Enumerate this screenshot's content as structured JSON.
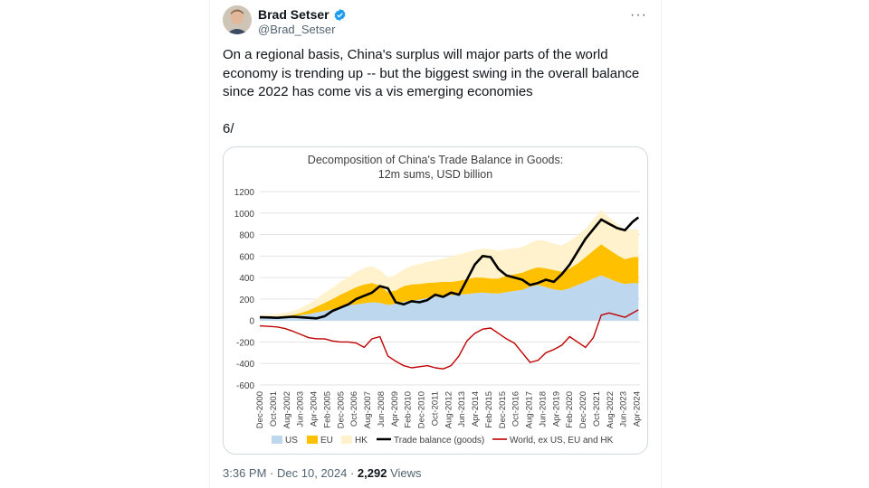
{
  "author": {
    "name": "Brad Setser",
    "handle": "@Brad_Setser",
    "verified_color": "#1d9bf0"
  },
  "tweet": {
    "lines": [
      "On a regional basis, China's surplus will major parts of the world",
      "economy is trending up -- but the biggest swing in the overall balance",
      "since 2022 has come vis a vis emerging economies"
    ],
    "counter": "6/",
    "time": "3:36 PM",
    "date": "Dec 10, 2024",
    "views_count": "2,292",
    "views_label": "Views",
    "more_label": "···"
  },
  "chart_data": {
    "type": "area",
    "title": "Decomposition of China's Trade Balance in Goods:",
    "subtitle": "12m sums, USD billion",
    "ylim": [
      -600,
      1200
    ],
    "yticks": [
      "1200",
      "1000",
      "800",
      "600",
      "400",
      "200",
      "0",
      "-200",
      "-400",
      "-600"
    ],
    "categories": [
      "Dec-2000",
      "Oct-2001",
      "Aug-2002",
      "Jun-2003",
      "Apr-2004",
      "Feb-2005",
      "Dec-2005",
      "Oct-2006",
      "Aug-2007",
      "Jun-2008",
      "Apr-2009",
      "Feb-2010",
      "Dec-2010",
      "Oct-2011",
      "Aug-2012",
      "Jun-2013",
      "Apr-2014",
      "Feb-2015",
      "Dec-2015",
      "Oct-2016",
      "Aug-2017",
      "Jun-2018",
      "Apr-2019",
      "Feb-2020",
      "Dec-2020",
      "Oct-2021",
      "Aug-2022",
      "Jun-2023",
      "Apr-2024"
    ],
    "x": [
      2000.9,
      2001.5,
      2002,
      2002.5,
      2003,
      2003.5,
      2004,
      2004.5,
      2005,
      2005.5,
      2006,
      2006.5,
      2007,
      2007.5,
      2008,
      2008.5,
      2009,
      2009.5,
      2010,
      2010.5,
      2011,
      2011.5,
      2012,
      2012.5,
      2013,
      2013.5,
      2014,
      2014.5,
      2015,
      2015.5,
      2016,
      2016.5,
      2017,
      2017.5,
      2018,
      2018.5,
      2019,
      2019.5,
      2020,
      2020.5,
      2021,
      2021.5,
      2022,
      2022.5,
      2023,
      2023.5,
      2024,
      2024.5,
      2024.85
    ],
    "series": [
      {
        "name": "US",
        "color": "#bdd7ee",
        "values": [
          25,
          27,
          30,
          35,
          40,
          50,
          60,
          75,
          90,
          105,
          125,
          140,
          150,
          160,
          170,
          165,
          145,
          155,
          175,
          185,
          195,
          210,
          220,
          230,
          235,
          240,
          245,
          255,
          260,
          255,
          250,
          265,
          275,
          285,
          315,
          330,
          310,
          290,
          280,
          300,
          330,
          360,
          390,
          420,
          390,
          360,
          340,
          350,
          345
        ]
      },
      {
        "name": "EU",
        "color": "#ffc000",
        "values": [
          5,
          5,
          6,
          8,
          12,
          20,
          35,
          55,
          75,
          95,
          115,
          135,
          160,
          175,
          180,
          160,
          120,
          125,
          145,
          150,
          145,
          140,
          135,
          130,
          125,
          130,
          140,
          145,
          140,
          135,
          140,
          150,
          155,
          160,
          160,
          165,
          175,
          180,
          175,
          185,
          200,
          230,
          260,
          290,
          270,
          250,
          230,
          240,
          245
        ]
      },
      {
        "name": "HK",
        "color": "#fff2cc",
        "values": [
          20,
          22,
          25,
          30,
          35,
          45,
          60,
          75,
          90,
          105,
          120,
          130,
          140,
          155,
          155,
          145,
          135,
          145,
          155,
          175,
          185,
          195,
          205,
          215,
          235,
          245,
          250,
          255,
          270,
          275,
          260,
          250,
          240,
          240,
          245,
          255,
          255,
          245,
          245,
          255,
          260,
          265,
          290,
          320,
          300,
          290,
          270,
          260,
          255
        ]
      },
      {
        "name": "Trade balance (goods)",
        "color": "#000000",
        "values": [
          30,
          28,
          25,
          30,
          35,
          30,
          25,
          20,
          40,
          90,
          120,
          150,
          200,
          230,
          260,
          320,
          300,
          170,
          150,
          180,
          170,
          190,
          240,
          220,
          260,
          240,
          380,
          520,
          600,
          590,
          480,
          420,
          400,
          380,
          330,
          350,
          380,
          360,
          430,
          520,
          640,
          760,
          850,
          940,
          900,
          860,
          840,
          920,
          960
        ]
      },
      {
        "name": "World, ex US, EU and HK",
        "color": "#c00000",
        "values": [
          -50,
          -55,
          -60,
          -75,
          -100,
          -130,
          -160,
          -170,
          -170,
          -190,
          -200,
          -200,
          -210,
          -250,
          -170,
          -150,
          -330,
          -380,
          -420,
          -440,
          -430,
          -420,
          -440,
          -450,
          -420,
          -330,
          -190,
          -120,
          -80,
          -70,
          -120,
          -170,
          -210,
          -300,
          -390,
          -370,
          -300,
          -270,
          -230,
          -150,
          -200,
          -250,
          -160,
          50,
          70,
          50,
          30,
          70,
          100
        ]
      }
    ]
  }
}
